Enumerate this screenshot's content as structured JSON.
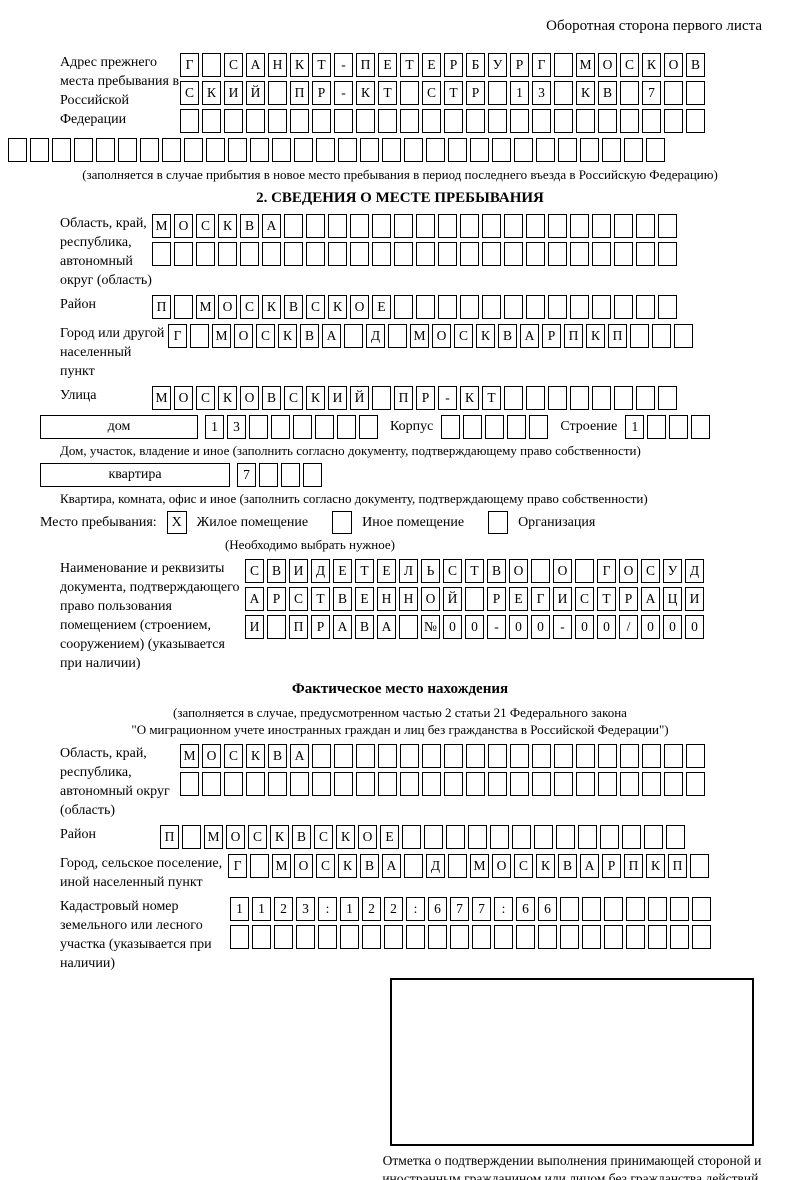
{
  "colors": {
    "ink": "#000000",
    "paper": "#ffffff"
  },
  "page_title": "Оборотная сторона первого листа",
  "prev_address": {
    "label": "Адрес прежнего места пребывания в Российской Федерации",
    "rows": [
      {
        "cells": "Г САНКТ-ПЕТЕРБУРГ МОСКОВ",
        "len": 24
      },
      {
        "cells": "СКИЙ ПР-КТ СТР 13 КВ 7",
        "len": 24
      },
      {
        "cells": "",
        "len": 24
      }
    ],
    "overflow_row": {
      "cells": "",
      "len": 30
    },
    "note": "(заполняется в случае прибытия в новое место пребывания в период последнего въезда в Российскую Федерацию)"
  },
  "section2": {
    "title": "2. СВЕДЕНИЯ О МЕСТЕ ПРЕБЫВАНИЯ",
    "oblast": {
      "label": "Область, край, республика, автономный округ (область)",
      "rows": [
        {
          "cells": "МОСКВА",
          "len": 24
        },
        {
          "cells": "",
          "len": 24
        }
      ]
    },
    "rayon": {
      "label": "Район",
      "row": {
        "cells": "П МОСКВСКОЕ",
        "len": 24
      }
    },
    "gorod": {
      "label": "Город или другой населенный пункт",
      "row": {
        "cells": "Г МОСКВА Д МОСКВАРПКП",
        "len": 24
      }
    },
    "ulitsa": {
      "label": "Улица",
      "row": {
        "cells": "МОСКОВСКИЙ ПР-КТ",
        "len": 24
      }
    },
    "dom": {
      "box_label": "дом",
      "row": {
        "cells": "13",
        "len": 8
      },
      "korpus_label": "Корпус",
      "korpus_row": {
        "cells": "",
        "len": 5
      },
      "stroenie_label": "Строение",
      "stroenie_row": {
        "cells": "1",
        "len": 4
      },
      "note": "Дом, участок, владение и иное (заполнить согласно документу, подтверждающему право собственности)"
    },
    "kvartira": {
      "box_label": "квартира",
      "row": {
        "cells": "7",
        "len": 4
      },
      "note": "Квартира, комната, офис и иное (заполнить согласно документу, подтверждающему право собственности)"
    },
    "mesto": {
      "label": "Место пребывания:",
      "options": [
        {
          "label": "Жилое помещение",
          "checked": "X"
        },
        {
          "label": "Иное помещение",
          "checked": ""
        },
        {
          "label": "Организация",
          "checked": ""
        }
      ],
      "note": "(Необходимо выбрать нужное)"
    },
    "document": {
      "label": "Наименование и реквизиты документа, подтверждающего право пользования помещением (строением, сооружением) (указывается при наличии)",
      "rows": [
        {
          "cells": "СВИДЕТЕЛЬСТВО О ГОСУД",
          "len": 21
        },
        {
          "cells": "АРСТВЕННОЙ РЕГИСТРАЦИ",
          "len": 21
        },
        {
          "cells": "И ПРАВА №00-00-00/000",
          "len": 21
        }
      ]
    }
  },
  "fact": {
    "title": "Фактическое место нахождения",
    "note1": "(заполняется в случае, предусмотренном частью 2 статьи 21 Федерального закона",
    "note2": "\"О миграционном учете иностранных граждан и лиц без гражданства в Российской Федерации\")",
    "oblast": {
      "label": "Область, край, республика, автономный округ (область)",
      "rows": [
        {
          "cells": "МОСКВА",
          "len": 24
        },
        {
          "cells": "",
          "len": 24
        }
      ]
    },
    "rayon": {
      "label": "Район",
      "row": {
        "cells": "П МОСКВСКОЕ",
        "len": 24
      }
    },
    "gorod": {
      "label": "Город, сельское поселение, иной населенный пункт",
      "row": {
        "cells": "Г МОСКВА Д МОСКВАРПКП",
        "len": 22
      }
    },
    "kadastr": {
      "label": "Кадастровый номер земельного или лесного участка (указывается при наличии)",
      "rows": [
        {
          "cells": "1123:122:677:66",
          "len": 22
        },
        {
          "cells": "",
          "len": 22
        }
      ]
    },
    "stamp_note": "Отметка о подтверждении выполнения принимающей стороной и иностранным гражданином или лицом без гражданства действий, необходимых для его постановки на учет по месту пребывания"
  }
}
